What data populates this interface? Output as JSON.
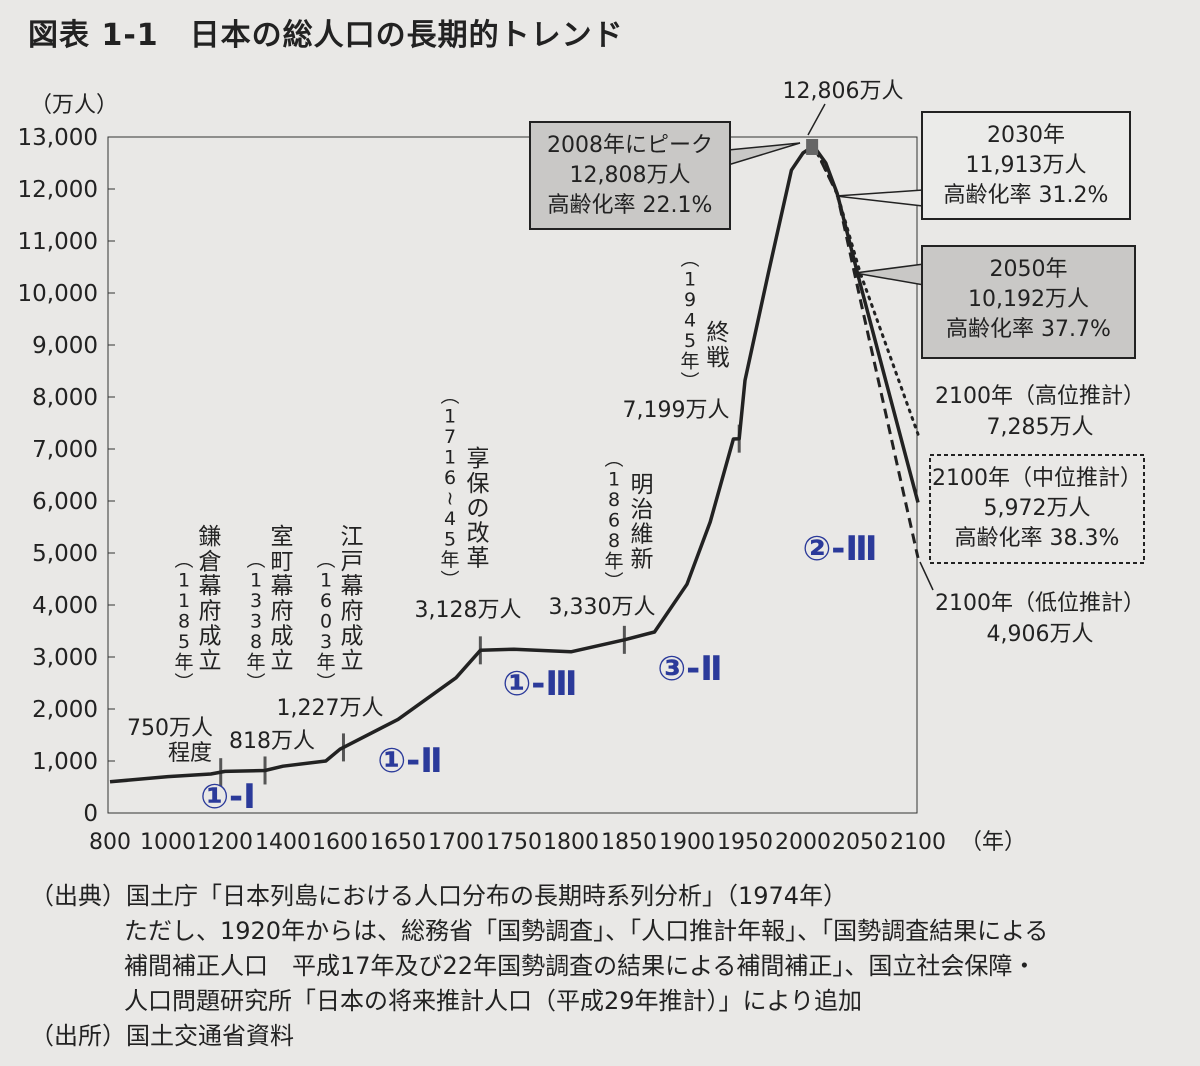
{
  "title": "図表 1-1　日本の総人口の長期的トレンド",
  "chart_data": {
    "type": "line",
    "title": "日本の総人口の長期的トレンド",
    "ylabel": "（万人）",
    "xlabel": "（年）",
    "ylim": [
      0,
      13000
    ],
    "yticks": [
      "0",
      "1,000",
      "2,000",
      "3,000",
      "4,000",
      "5,000",
      "6,000",
      "7,000",
      "8,000",
      "9,000",
      "10,000",
      "11,000",
      "12,000",
      "13,000"
    ],
    "xticks": [
      "800",
      "1000",
      "1200",
      "1400",
      "1600",
      "1650",
      "1700",
      "1750",
      "1800",
      "1850",
      "1900",
      "1950",
      "2000",
      "2050",
      "2100"
    ],
    "series": [
      {
        "name": "",
        "style": "solid",
        "points": [
          [
            800,
            600
          ],
          [
            1000,
            700
          ],
          [
            1150,
            750
          ],
          [
            1200,
            800
          ],
          [
            1338,
            818
          ],
          [
            1400,
            900
          ],
          [
            1550,
            1000
          ],
          [
            1600,
            1227
          ],
          [
            1650,
            1800
          ],
          [
            1700,
            2600
          ],
          [
            1721,
            3128
          ],
          [
            1750,
            3150
          ],
          [
            1800,
            3100
          ],
          [
            1846,
            3330
          ],
          [
            1872,
            3481
          ],
          [
            1900,
            4400
          ],
          [
            1920,
            5596
          ],
          [
            1940,
            7193
          ],
          [
            1945,
            7199
          ],
          [
            1950,
            8320
          ],
          [
            1970,
            10372
          ],
          [
            1990,
            12361
          ],
          [
            2000,
            12693
          ],
          [
            2008,
            12808
          ],
          [
            2010,
            12806
          ],
          [
            2020,
            12500
          ],
          [
            2030,
            11913
          ],
          [
            2050,
            10192
          ],
          [
            2070,
            8500
          ],
          [
            2100,
            5972
          ]
        ]
      },
      {
        "name": "",
        "style": "dotted",
        "points": [
          [
            2010,
            12806
          ],
          [
            2030,
            11913
          ],
          [
            2050,
            10400
          ],
          [
            2100,
            7285
          ]
        ]
      },
      {
        "name": "",
        "style": "dashed",
        "points": [
          [
            2010,
            12806
          ],
          [
            2030,
            11900
          ],
          [
            2050,
            9900
          ],
          [
            2100,
            4906
          ]
        ]
      }
    ],
    "annotations": {
      "events": [
        {
          "label": "鎌倉幕府成立",
          "year": "（1185年）",
          "x": 1185
        },
        {
          "label": "室町幕府成立",
          "year": "（1338年）",
          "x": 1338
        },
        {
          "label": "江戸幕府成立",
          "year": "（1603年）",
          "x": 1603
        },
        {
          "label": "享保の改革",
          "year": "（1716～45年）",
          "x": 1721
        },
        {
          "label": "明治維新",
          "year": "（1868年）",
          "x": 1846
        },
        {
          "label": "終戦",
          "year": "（1945年）",
          "x": 1945
        }
      ],
      "values": [
        "750万人",
        "程度",
        "818万人",
        "1,227万人",
        "3,128万人",
        "3,330万人",
        "7,199万人",
        "12,806万人"
      ],
      "box_peak": [
        "2008年にピーク",
        "12,808万人",
        "高齢化率 22.1%"
      ],
      "box_2030": [
        "2030年",
        "11,913万人",
        "高齢化率 31.2%"
      ],
      "box_2050": [
        "2050年",
        "10,192万人",
        "高齢化率 37.7%"
      ],
      "high": [
        "2100年（高位推計）",
        "7,285万人"
      ],
      "mid": [
        "2100年（中位推計）",
        "5,972万人",
        "高齢化率 38.3%"
      ],
      "low": [
        "2100年（低位推計）",
        "4,906万人"
      ]
    },
    "handwritten": [
      "①-Ⅰ",
      "①-Ⅱ",
      "①-Ⅲ",
      "③-Ⅱ",
      "②-Ⅲ"
    ]
  },
  "source": {
    "line1": "（出典）国土庁「日本列島における人口分布の長期時系列分析」（1974年）",
    "line2": "ただし、1920年からは、総務省「国勢調査」、「人口推計年報」、「国勢調査結果による",
    "line3": "補間補正人口　平成17年及び22年国勢調査の結果による補間補正」、国立社会保障・",
    "line4": "人口問題研究所「日本の将来推計人口（平成29年推計）」により追加",
    "line5": "（出所）国土交通省資料"
  }
}
